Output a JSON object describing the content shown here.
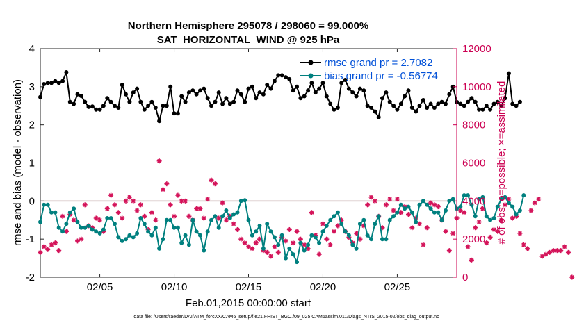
{
  "chart_data": {
    "type": "line",
    "title_line1": "Northern Hemisphere 295078 / 298060 = 99.000%",
    "title_line2": "SAT_HORIZONTAL_WIND @ 925 hPa",
    "xlabel": "Feb.01,2015 00:00:00 start",
    "ylabel_left": "rmse and bias (model - observation)",
    "ylabel_right": "# of obs: o=possible; ×=assimilated",
    "footer": "data file: /Users/raeder/DAI/ATM_forcXX/CAM6_setup/f.e21.FHIST_BGC.f09_025.CAM6assim.011/Diags_NTrS_2015-02/obs_diag_output.nc",
    "xlim": [
      1,
      29
    ],
    "ylim_left": [
      -2,
      4
    ],
    "ylim_right": [
      0,
      12000
    ],
    "x_ticks": [
      {
        "v": 5,
        "label": "02/05"
      },
      {
        "v": 10,
        "label": "02/10"
      },
      {
        "v": 15,
        "label": "02/15"
      },
      {
        "v": 20,
        "label": "02/20"
      },
      {
        "v": 25,
        "label": "02/25"
      }
    ],
    "y_left_ticks": [
      {
        "v": -2,
        "label": "-2"
      },
      {
        "v": -1,
        "label": "-1"
      },
      {
        "v": 0,
        "label": "0"
      },
      {
        "v": 1,
        "label": "1"
      },
      {
        "v": 2,
        "label": "2"
      },
      {
        "v": 3,
        "label": "3"
      },
      {
        "v": 4,
        "label": "4"
      }
    ],
    "y_right_ticks": [
      {
        "v": 0,
        "label": "0"
      },
      {
        "v": 2000,
        "label": "2000"
      },
      {
        "v": 4000,
        "label": "4000"
      },
      {
        "v": 6000,
        "label": "6000"
      },
      {
        "v": 8000,
        "label": "8000"
      },
      {
        "v": 10000,
        "label": "10000"
      },
      {
        "v": 12000,
        "label": "12000"
      }
    ],
    "legend": [
      {
        "label": "rmse grand pr = 2.7082",
        "color": "#000000"
      },
      {
        "label": "bias grand pr = -0.56774",
        "color": "#00807f"
      }
    ],
    "label_color": "#0050d8",
    "right_axis_color": "#cc0052",
    "zero_line_color": "#c0a8a8",
    "series": [
      {
        "name": "rmse",
        "color": "#000000",
        "t0": 1.0,
        "dt": 0.25,
        "values": [
          2.73,
          3.07,
          3.1,
          3.1,
          3.15,
          3.1,
          3.15,
          3.38,
          2.6,
          2.55,
          2.8,
          2.76,
          2.6,
          2.47,
          2.48,
          2.4,
          2.4,
          2.5,
          2.7,
          2.6,
          2.5,
          2.45,
          3.05,
          2.8,
          2.6,
          2.85,
          2.95,
          2.6,
          2.4,
          2.5,
          2.6,
          2.45,
          2.1,
          2.5,
          2.5,
          3.0,
          2.3,
          2.3,
          2.75,
          2.6,
          2.85,
          2.9,
          2.8,
          2.9,
          2.95,
          2.7,
          2.5,
          2.6,
          2.85,
          2.55,
          2.7,
          2.55,
          2.6,
          2.9,
          2.8,
          2.6,
          2.95,
          3.0,
          2.7,
          2.85,
          2.8,
          3.05,
          2.95,
          3.15,
          3.3,
          3.3,
          3.25,
          3.2,
          2.9,
          3.0,
          2.7,
          2.75,
          2.9,
          3.1,
          2.85,
          2.95,
          3.1,
          2.75,
          2.55,
          2.4,
          2.45,
          3.1,
          3.18,
          2.95,
          2.85,
          2.75,
          2.95,
          2.9,
          2.5,
          2.45,
          2.35,
          2.2,
          2.7,
          2.85,
          2.6,
          2.5,
          2.4,
          2.55,
          2.75,
          2.9,
          2.45,
          2.35,
          2.5,
          2.65,
          2.45,
          2.55,
          2.45,
          2.55,
          2.6,
          2.55,
          2.8,
          3.0,
          2.6,
          2.55,
          2.5,
          2.6,
          2.7,
          2.6,
          2.4,
          2.4,
          2.5,
          2.4,
          2.55,
          2.6,
          2.5,
          2.7,
          3.35,
          2.55,
          2.5,
          2.6
        ]
      },
      {
        "name": "bias",
        "color": "#00807f",
        "t0": 1.0,
        "dt": 0.25,
        "values": [
          -0.55,
          -0.1,
          -0.1,
          -0.3,
          -0.3,
          -0.7,
          -0.8,
          -0.6,
          -0.3,
          -0.2,
          -0.55,
          -0.7,
          -0.7,
          -0.65,
          -0.75,
          -0.8,
          -0.85,
          -0.75,
          -0.45,
          -0.45,
          -0.6,
          -0.95,
          -1.05,
          -1.0,
          -0.9,
          -0.95,
          -0.85,
          -0.45,
          -0.6,
          -0.8,
          -0.9,
          -0.7,
          -1.25,
          -1.0,
          -0.5,
          -0.5,
          -0.7,
          -0.7,
          -1.1,
          -0.9,
          -1.15,
          -0.5,
          -0.8,
          -0.9,
          -1.3,
          -0.8,
          -0.5,
          -0.4,
          -0.7,
          -0.4,
          -0.25,
          -0.45,
          -0.35,
          -0.3,
          0.0,
          0.02,
          -0.5,
          -0.9,
          -0.8,
          -0.65,
          -1.25,
          -0.6,
          -0.8,
          -0.95,
          -1.15,
          -0.9,
          -1.5,
          -1.25,
          -1.4,
          -1.6,
          -1.1,
          -1.3,
          -1.15,
          -0.9,
          -0.95,
          -1.1,
          -0.8,
          -0.65,
          -0.5,
          -0.4,
          -0.3,
          -0.6,
          -0.8,
          -0.9,
          -1.15,
          -1.25,
          -0.6,
          -0.5,
          -0.9,
          -1.0,
          -0.6,
          -0.4,
          -1.0,
          -1.0,
          -0.5,
          -0.4,
          -0.3,
          -0.1,
          -0.2,
          -0.15,
          -0.3,
          -0.55,
          -0.1,
          0.0,
          -0.1,
          -0.2,
          -0.3,
          -0.3,
          -0.5,
          -0.25,
          0.0,
          0.05,
          -0.2,
          -0.15,
          0.15,
          0.15,
          -0.1,
          -0.4,
          0.05,
          0.1,
          -0.4,
          -0.5,
          -0.45,
          -0.15,
          0.05,
          0.1,
          -0.05,
          -0.15,
          -0.35,
          -0.25,
          0.15
        ]
      }
    ],
    "obs_assimilated": {
      "name": "# obs assimilated",
      "color": "#d4145a",
      "t0": 1.0,
      "dt": 0.25,
      "values": [
        1300,
        1600,
        1450,
        1700,
        1800,
        1400,
        3200,
        2400,
        3300,
        3000,
        1900,
        2000,
        3800,
        2700,
        2600,
        3100,
        3000,
        2400,
        3600,
        4300,
        3800,
        3400,
        3100,
        4000,
        4200,
        4000,
        3500,
        3800,
        3200,
        2500,
        3400,
        3000,
        6100,
        4600,
        4900,
        3800,
        3200,
        4300,
        4000,
        4000,
        3200,
        3000,
        3600,
        3600,
        3100,
        4100,
        5100,
        4900,
        3100,
        3900,
        3000,
        3200,
        2800,
        2500,
        2000,
        1800,
        1600,
        1500,
        1800,
        2000,
        1400,
        1300,
        1100,
        1600,
        1300,
        2100,
        1900,
        2500,
        1800,
        2400,
        2000,
        1700,
        1500,
        3400,
        2200,
        1200,
        2800,
        2000,
        1700,
        2400,
        2700,
        3000,
        2400,
        2100,
        1800,
        2300,
        2000,
        2700,
        3800,
        4200,
        4000,
        3200,
        2600,
        3800,
        4100,
        3500,
        4100,
        3400,
        3700,
        3300,
        2600,
        3100,
        2800,
        1700,
        2600,
        3900,
        3800,
        3700,
        3000,
        2400,
        1400,
        2300,
        3100,
        3500,
        3400,
        1600,
        900,
        2600,
        2900,
        3600,
        1800,
        2100,
        2500,
        2400,
        3000,
        3800,
        4100,
        3100,
        3200,
        2300,
        1700,
        1500,
        3500,
        3900,
        4100,
        1100,
        1200,
        1300,
        1400,
        1400,
        1400,
        1600,
        1300,
        0
      ]
    }
  }
}
